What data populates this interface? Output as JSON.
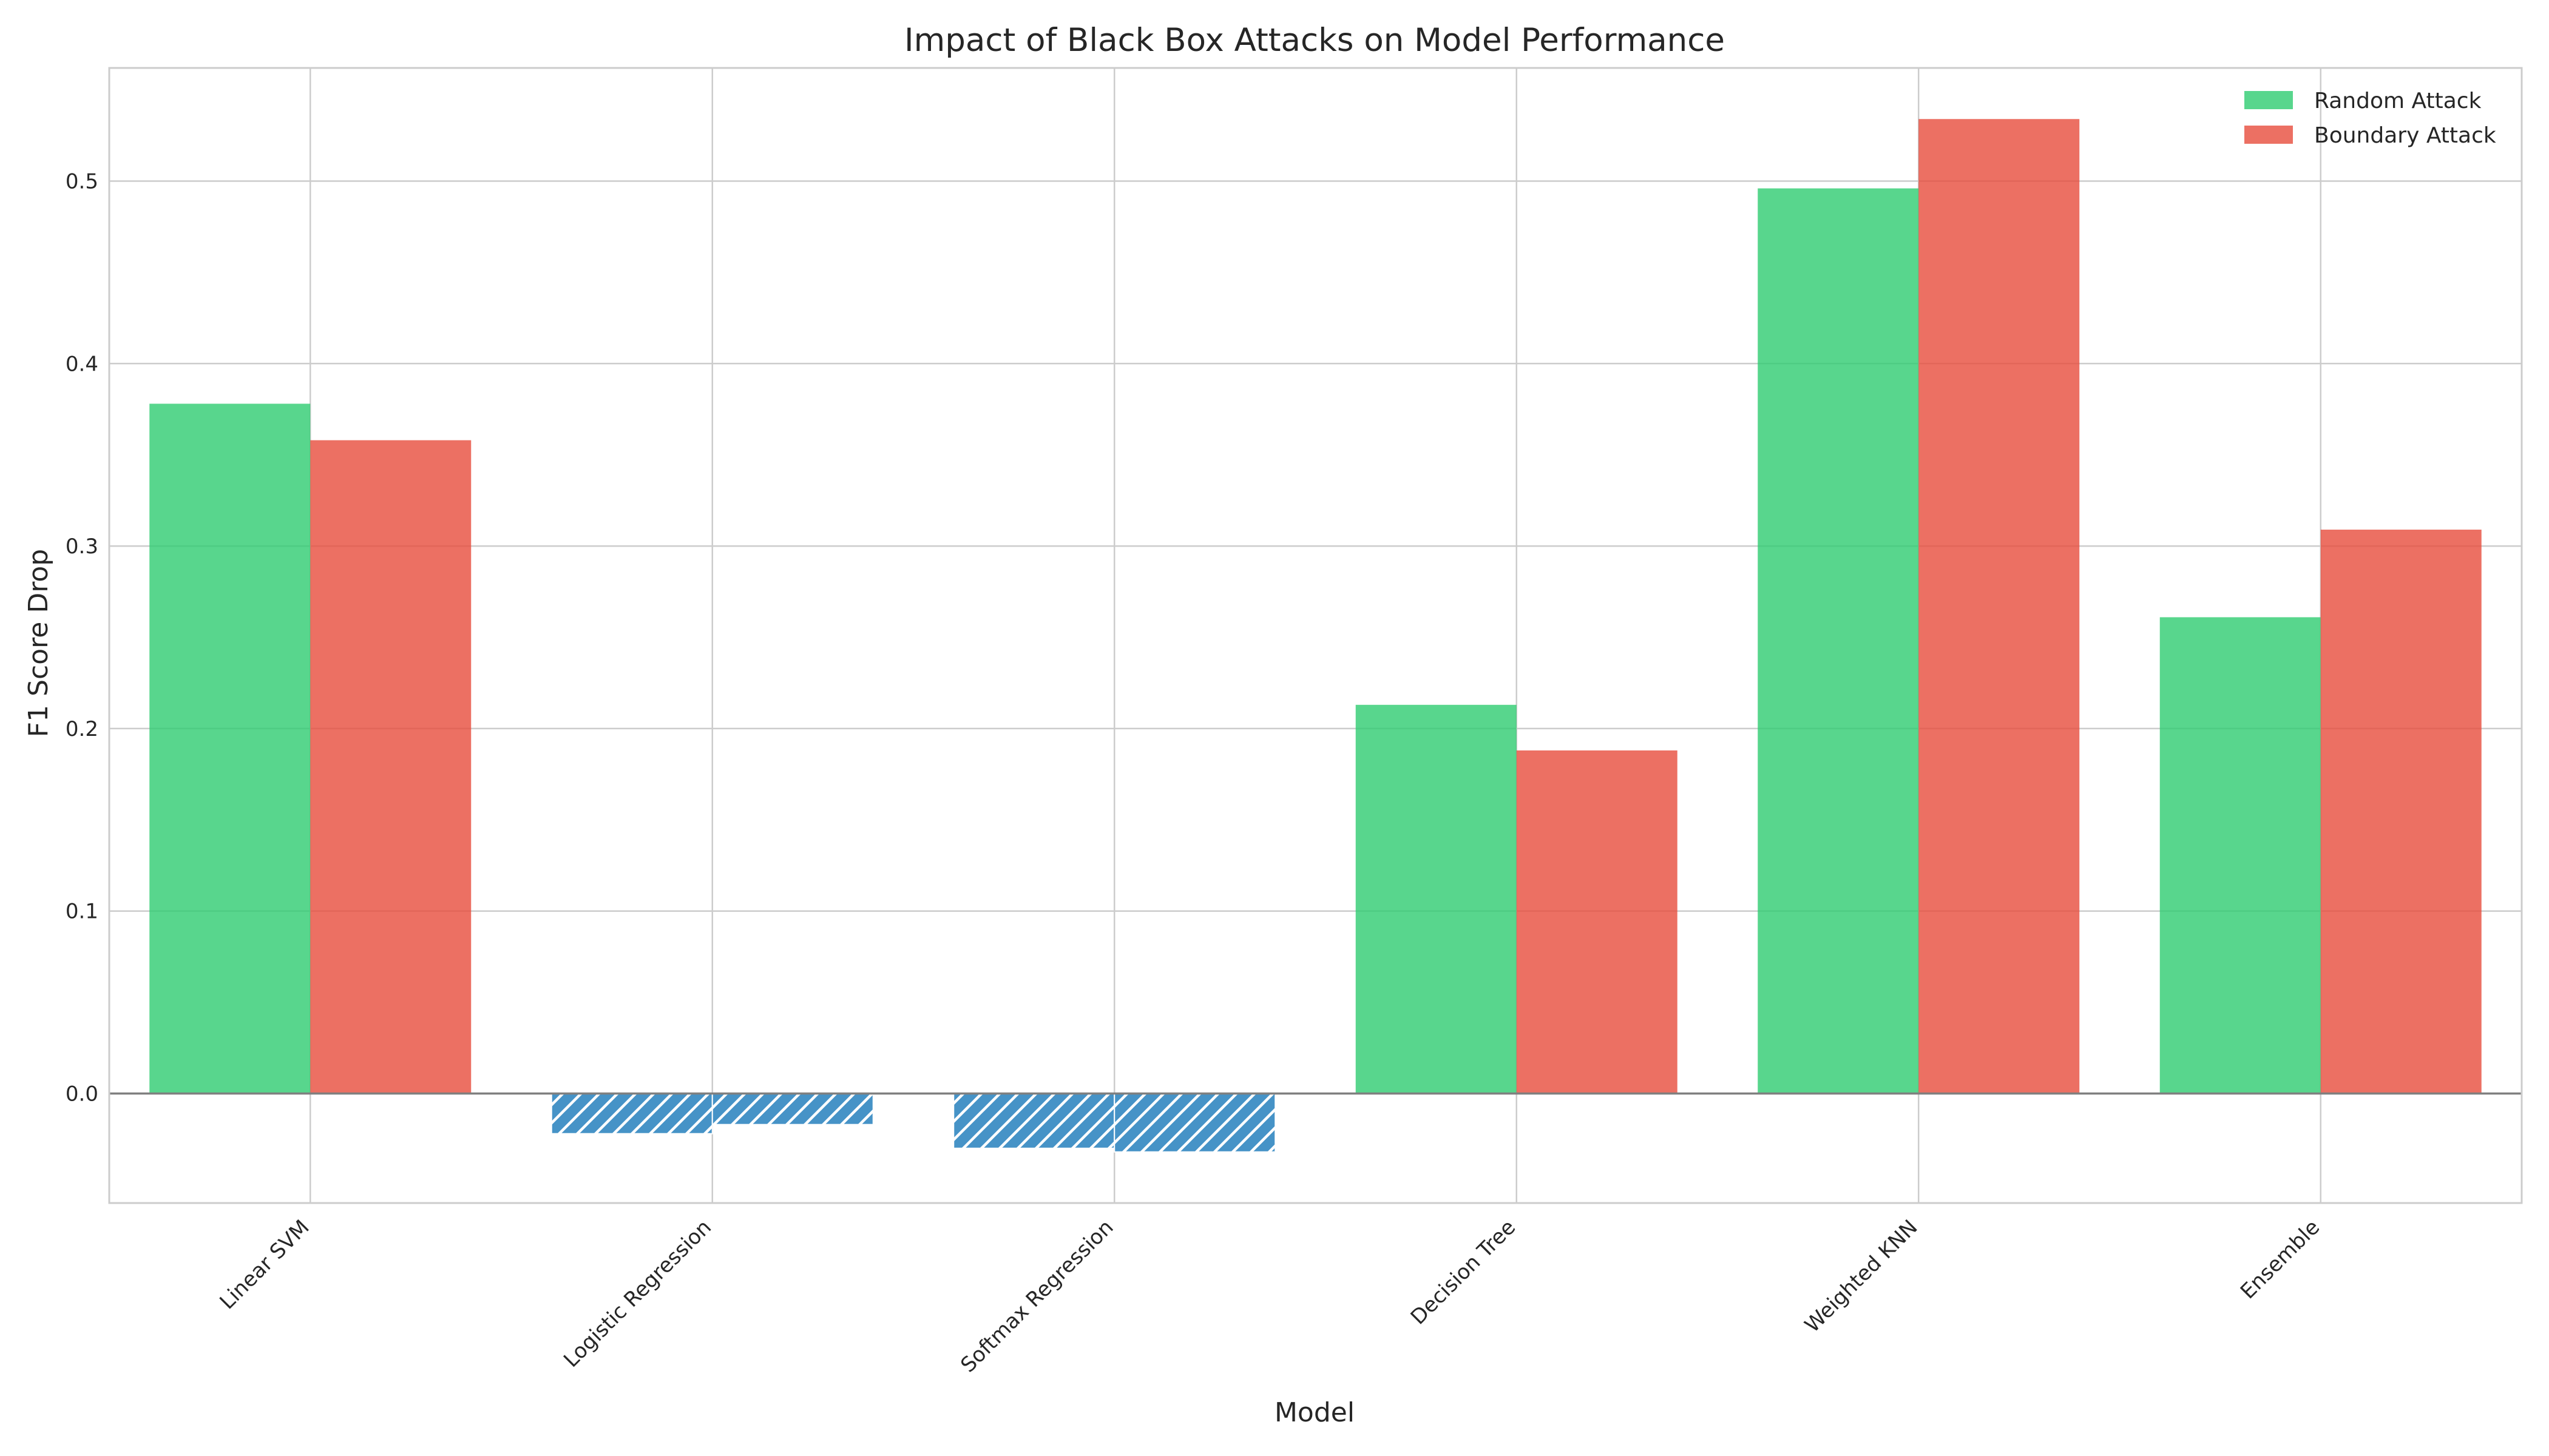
{
  "chart_data": {
    "type": "bar",
    "title": "Impact of Black Box Attacks on Model Performance",
    "xlabel": "Model",
    "ylabel": "F1 Score Drop",
    "categories": [
      "Linear SVM",
      "Logistic Regression",
      "Softmax Regression",
      "Decision Tree",
      "Weighted KNN",
      "Ensemble"
    ],
    "series": [
      {
        "name": "Random Attack",
        "color": "#2ecc71",
        "values": [
          0.378,
          -0.022,
          -0.03,
          0.213,
          0.496,
          0.261
        ]
      },
      {
        "name": "Boundary Attack",
        "color": "#e74c3c",
        "values": [
          0.358,
          -0.017,
          -0.032,
          0.188,
          0.534,
          0.309
        ]
      }
    ],
    "negative_color": "#3c8dc4",
    "negative_hatch": true,
    "ylim": [
      -0.06,
      0.562
    ],
    "yticks": [
      "0.0",
      "0.1",
      "0.2",
      "0.3",
      "0.4",
      "0.5"
    ],
    "ytick_values": [
      0.0,
      0.1,
      0.2,
      0.3,
      0.4,
      0.5
    ],
    "grid": true,
    "legend_position": "top-right"
  }
}
